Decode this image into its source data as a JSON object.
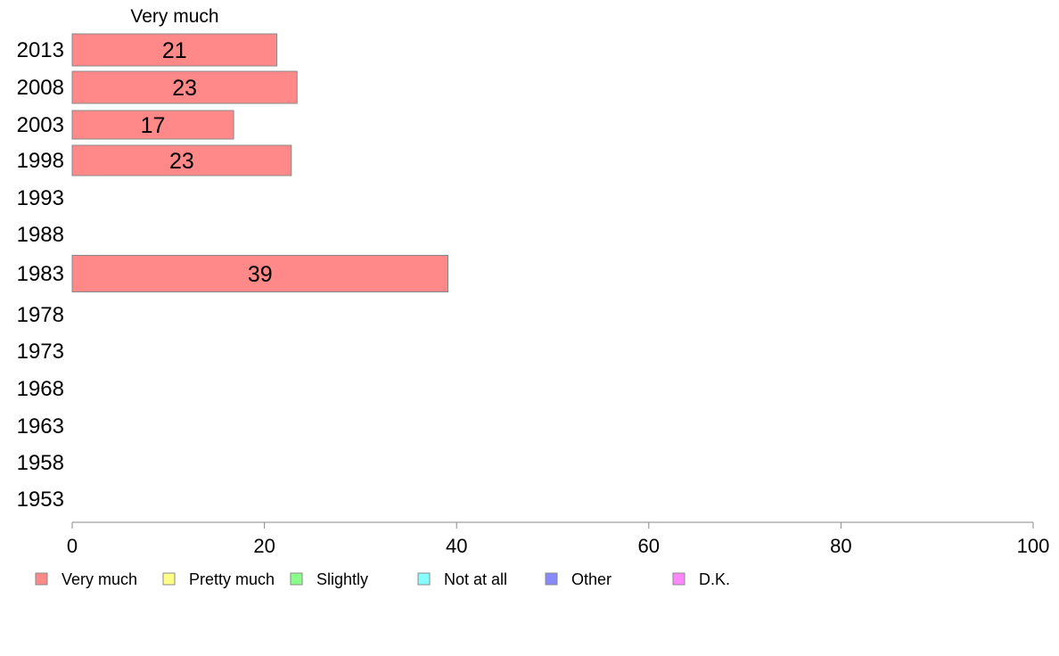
{
  "chart_data": {
    "type": "bar",
    "orientation": "horizontal",
    "stacked": true,
    "header_label": "Very much",
    "categories": [
      "2013",
      "2008",
      "2003",
      "1998",
      "1993",
      "1988",
      "1983",
      "1978",
      "1973",
      "1968",
      "1963",
      "1958",
      "1953"
    ],
    "series": [
      {
        "name": "Very much",
        "color": "#ff8888",
        "values": [
          21.3,
          23.4,
          16.8,
          22.8,
          null,
          null,
          39.1,
          null,
          null,
          null,
          null,
          null,
          null
        ],
        "labels": [
          "21",
          "23",
          "17",
          "23",
          "",
          "",
          "39",
          "",
          "",
          "",
          "",
          "",
          ""
        ]
      },
      {
        "name": "Pretty much",
        "color": "#ffff88",
        "values": [
          null,
          null,
          null,
          null,
          null,
          null,
          null,
          null,
          null,
          null,
          null,
          null,
          null
        ]
      },
      {
        "name": "Slightly",
        "color": "#88ff88",
        "values": [
          null,
          null,
          null,
          null,
          null,
          null,
          null,
          null,
          null,
          null,
          null,
          null,
          null
        ]
      },
      {
        "name": "Not at all",
        "color": "#88ffff",
        "values": [
          null,
          null,
          null,
          null,
          null,
          null,
          null,
          null,
          null,
          null,
          null,
          null,
          null
        ]
      },
      {
        "name": "Other",
        "color": "#8888ff",
        "values": [
          null,
          null,
          null,
          null,
          null,
          null,
          null,
          null,
          null,
          null,
          null,
          null,
          null
        ]
      },
      {
        "name": "D.K.",
        "color": "#ff88ff",
        "values": [
          null,
          null,
          null,
          null,
          null,
          null,
          null,
          null,
          null,
          null,
          null,
          null,
          null
        ]
      }
    ],
    "xlim": [
      0,
      100
    ],
    "xticks": [
      "0",
      "20",
      "40",
      "60",
      "80",
      "100"
    ],
    "xlabel": "",
    "ylabel": "",
    "grid": false,
    "legend_position": "bottom-left"
  }
}
